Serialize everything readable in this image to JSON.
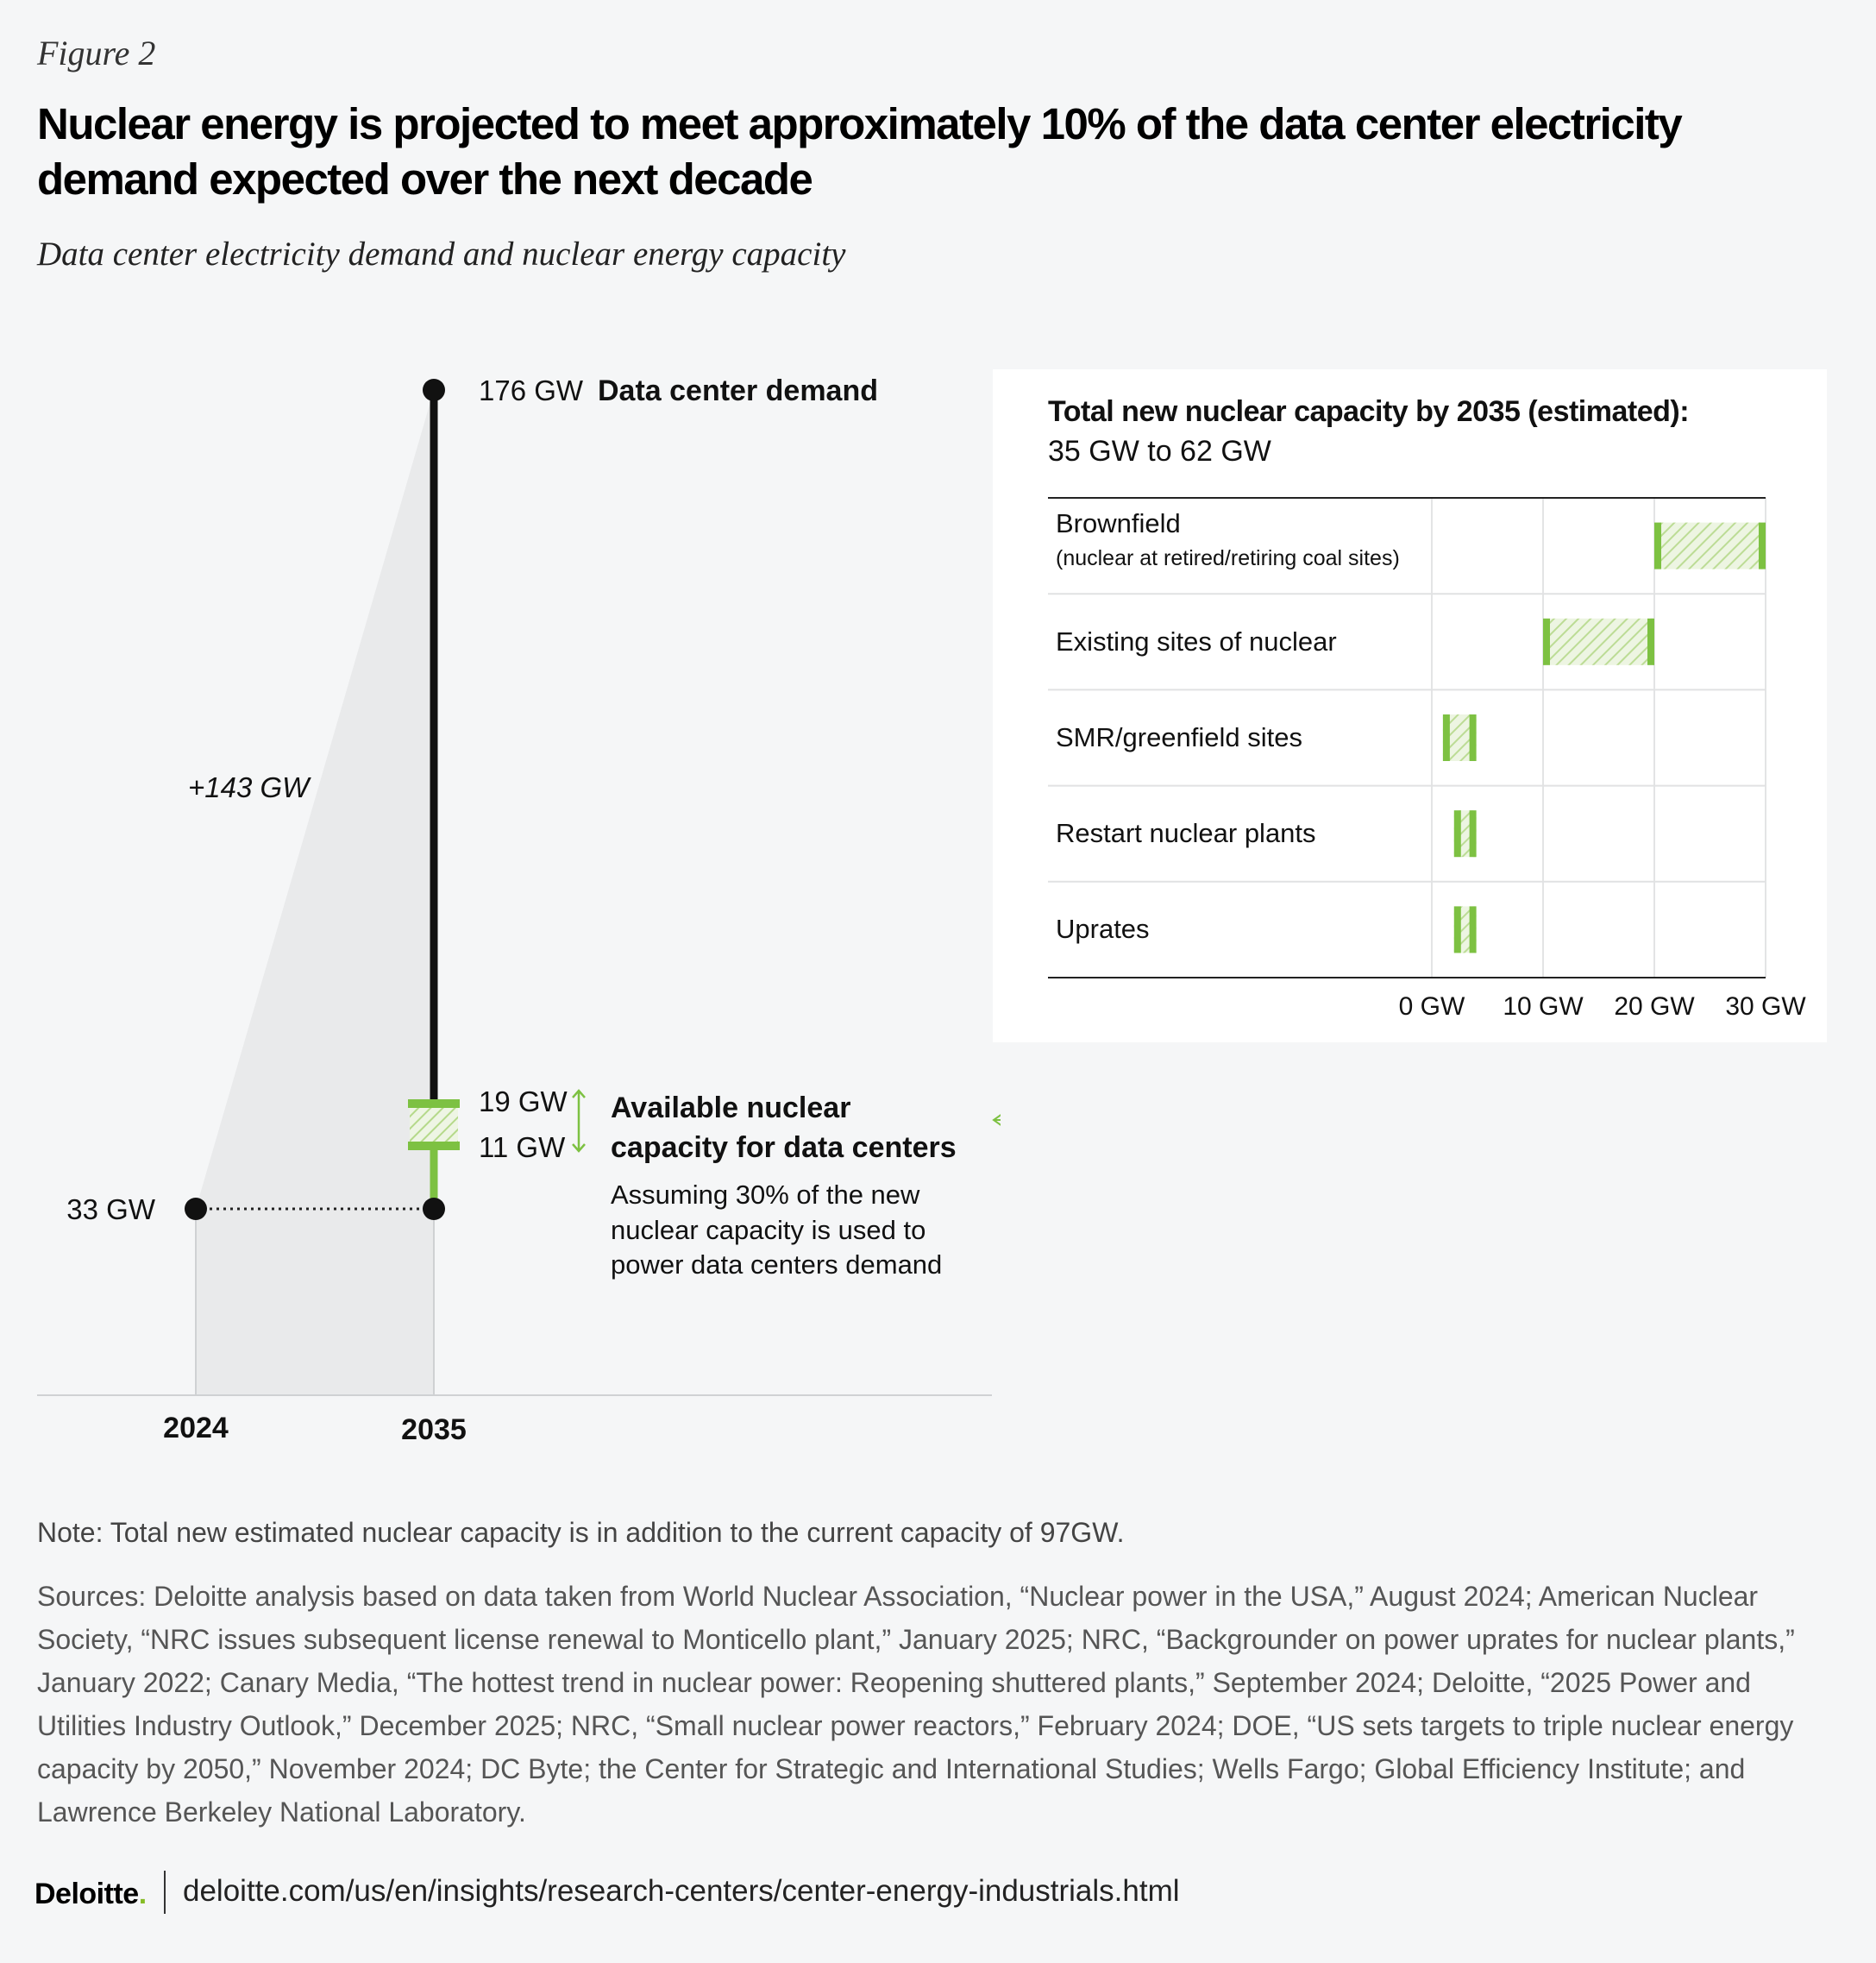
{
  "figure_label": "Figure 2",
  "title": "Nuclear energy is projected to meet approximately 10% of the data center electricity demand expected over the next decade",
  "subtitle": "Data center electricity demand and nuclear energy capacity",
  "colors": {
    "background": "#f5f6f7",
    "green": "#7dc142",
    "hatch_light": "#cfe5b3",
    "shade": "#e9eaeb",
    "line": "#111111"
  },
  "chart_data": [
    {
      "type": "line",
      "x": [
        "2024",
        "2035"
      ],
      "series": [
        {
          "name": "Data center demand",
          "values": [
            33,
            176
          ]
        }
      ],
      "labels": {
        "start": "33 GW",
        "end": "176 GW",
        "end_title": "Data center demand",
        "growth": "+143 GW",
        "nuclear_high": "19 GW",
        "nuclear_low": "11 GW",
        "nuclear_title_line1": "Available nuclear",
        "nuclear_title_line2": "capacity for data centers",
        "nuclear_note_line1": "Assuming 30% of the new",
        "nuclear_note_line2": "nuclear capacity is used to",
        "nuclear_note_line3": "power data centers demand"
      },
      "nuclear_range": [
        11,
        19
      ],
      "xlabels": [
        "2024",
        "2035"
      ]
    },
    {
      "type": "bar",
      "title": "Total new nuclear capacity by 2035 (estimated):",
      "subtitle": "35 GW to 62 GW",
      "categories": [
        {
          "label": "Brownfield",
          "sublabel": "(nuclear at retired/retiring coal sites)",
          "range": [
            20,
            30
          ]
        },
        {
          "label": "Existing sites of nuclear",
          "sublabel": "",
          "range": [
            10,
            20
          ]
        },
        {
          "label": "SMR/greenfield sites",
          "sublabel": "",
          "range": [
            1,
            4
          ]
        },
        {
          "label": "Restart nuclear plants",
          "sublabel": "",
          "range": [
            2,
            4
          ]
        },
        {
          "label": "Uprates",
          "sublabel": "",
          "range": [
            2,
            4
          ]
        }
      ],
      "xticks": [
        {
          "value": 0,
          "label": "0 GW"
        },
        {
          "value": 10,
          "label": "10 GW"
        },
        {
          "value": 20,
          "label": "20 GW"
        },
        {
          "value": 30,
          "label": "30 GW"
        }
      ],
      "xlim": [
        0,
        30
      ]
    }
  ],
  "note": "Note: Total new estimated nuclear capacity is in addition to the current capacity of 97GW.",
  "sources": "Sources: Deloitte analysis based on data taken from World Nuclear Association, “Nuclear power in the USA,” August 2024; American Nuclear Society, “NRC issues subsequent license renewal to Monticello plant,” January 2025;  NRC, “Backgrounder on power uprates for nuclear plants,” January 2022; Canary Media, “The hottest trend in nuclear power: Reopening shuttered plants,” September 2024; Deloitte, “2025 Power and Utilities Industry Outlook,” December 2025; NRC, “Small nuclear power reactors,” February 2024;  DOE, “US sets targets to triple nuclear energy capacity by 2050,” November 2024; DC Byte; the Center for Strategic and International Studies; Wells Fargo; Global Efficiency Institute; and Lawrence Berkeley National Laboratory.",
  "footer": {
    "logo": "Deloitte",
    "logo_dot": ".",
    "url": "deloitte.com/us/en/insights/research-centers/center-energy-industrials.html"
  }
}
